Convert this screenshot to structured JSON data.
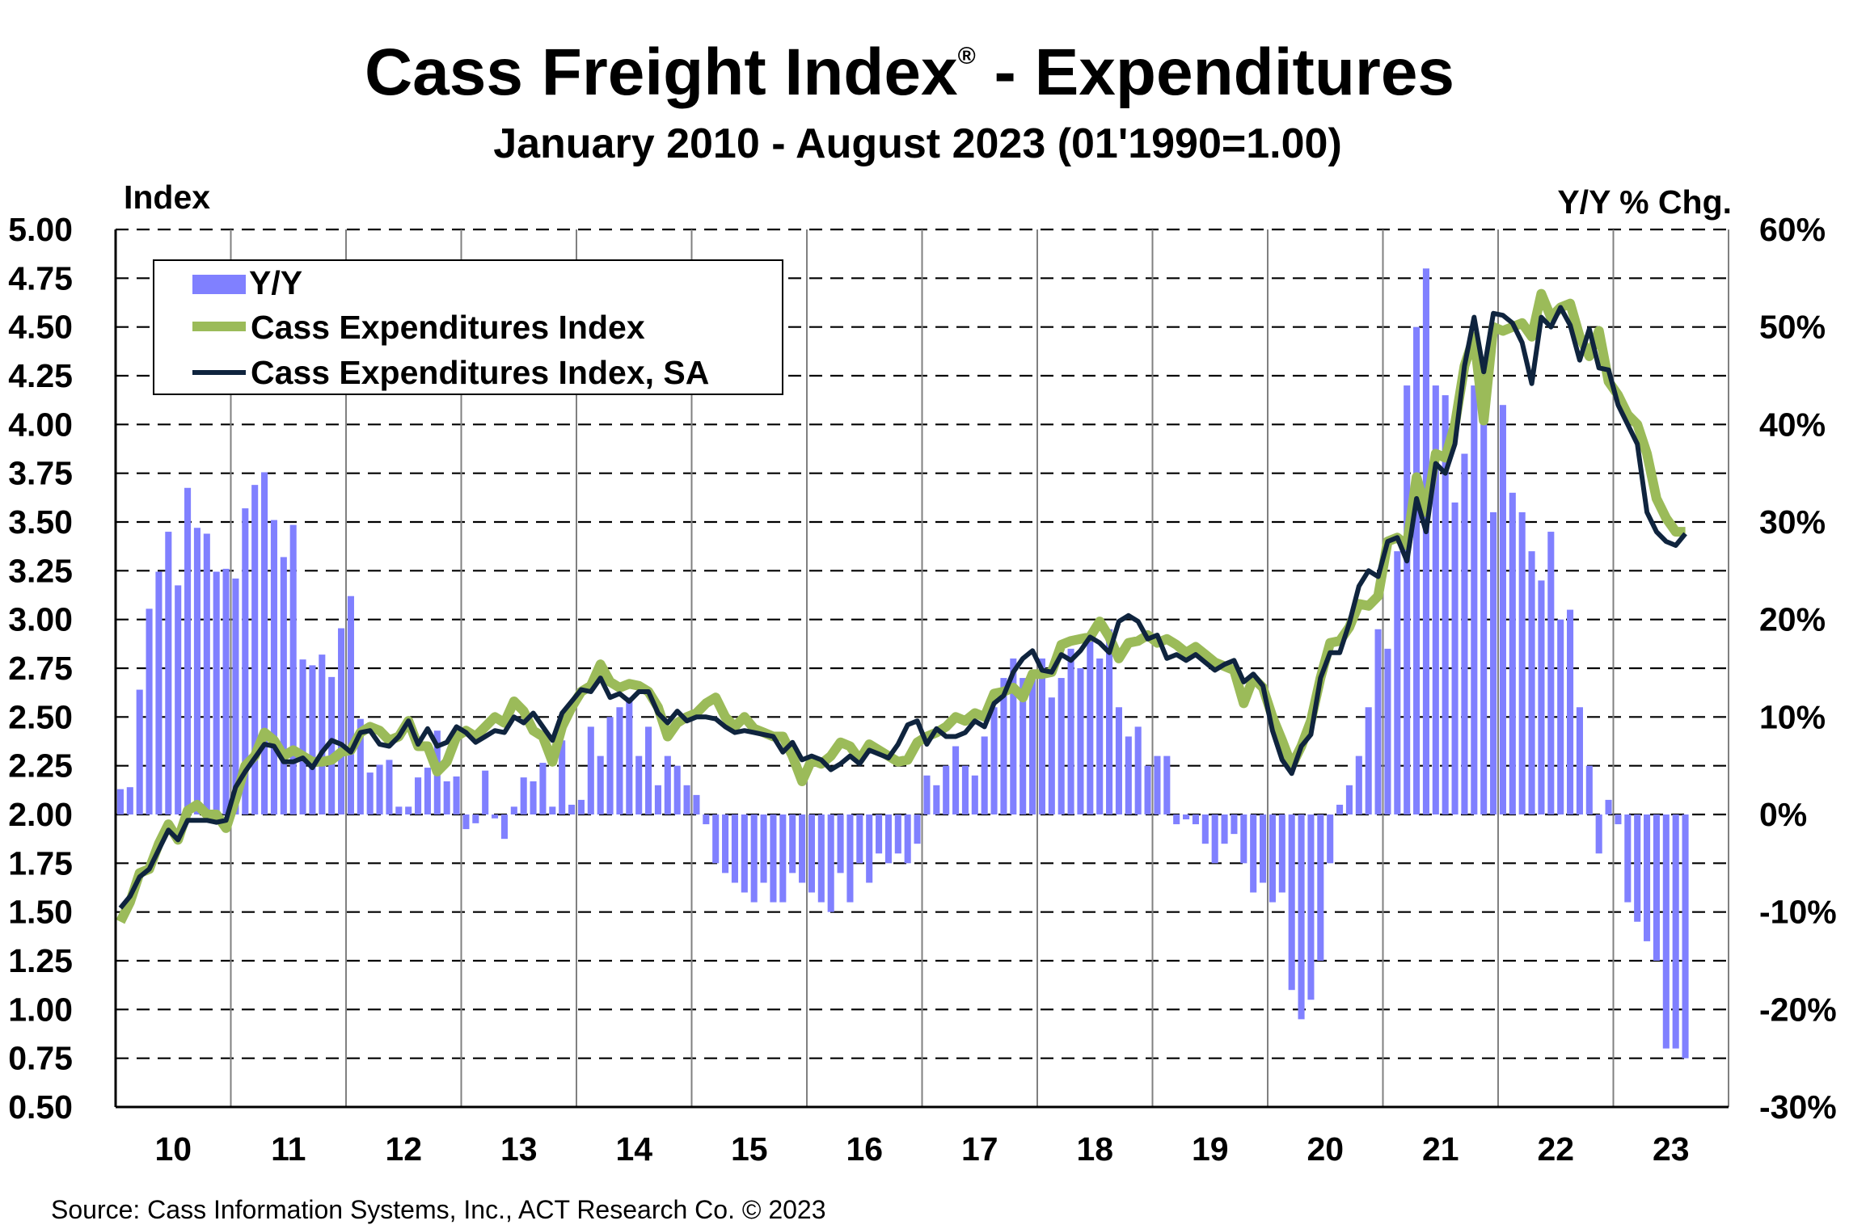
{
  "chart_data": {
    "type": "bar+line",
    "title": "Cass Freight Index",
    "title_mark": "®",
    "title_suffix": " - Expenditures",
    "subtitle": "January 2010 - August 2023 (01'1990=1.00)",
    "ylabel_left": "Index",
    "ylabel_right": "Y/Y % Chg.",
    "source": "Source: Cass Information Systems, Inc., ACT Research Co. © 2023",
    "ylim_left": [
      0.5,
      5.0
    ],
    "ylim_right": [
      -30,
      60
    ],
    "yticks_left": [
      "5.00",
      "4.75",
      "4.50",
      "4.25",
      "4.00",
      "3.75",
      "3.50",
      "3.25",
      "3.00",
      "2.75",
      "2.50",
      "2.25",
      "2.00",
      "1.75",
      "1.50",
      "1.25",
      "1.00",
      "0.75",
      "0.50"
    ],
    "yticks_right": [
      "60%",
      "50%",
      "40%",
      "30%",
      "20%",
      "10%",
      "0%",
      "-10%",
      "-20%",
      "-30%"
    ],
    "xticks": [
      "10",
      "11",
      "12",
      "13",
      "14",
      "15",
      "16",
      "17",
      "18",
      "19",
      "20",
      "21",
      "22",
      "23"
    ],
    "grid": true,
    "legend_placement": "top-left",
    "colors": {
      "yy": "#8080ff",
      "nsa": "#9bbb59",
      "sa": "#0f243e"
    },
    "legend": [
      "Y/Y",
      "Cass Expenditures Index",
      "Cass Expenditures Index, SA"
    ],
    "start": "2010-01",
    "end": "2023-08",
    "series": [
      {
        "name": "Y/Y",
        "axis": "right",
        "type": "bar",
        "values": [
          2.6,
          2.8,
          12.8,
          21.1,
          24.9,
          29.0,
          23.5,
          33.5,
          29.4,
          28.8,
          24.9,
          25.2,
          24.2,
          31.4,
          33.8,
          35.1,
          30.2,
          26.4,
          29.7,
          15.9,
          15.3,
          16.4,
          14.1,
          19.1,
          22.4,
          9.8,
          4.3,
          5.1,
          5.6,
          0.8,
          0.8,
          3.8,
          4.8,
          8.6,
          3.4,
          3.9,
          -1.5,
          -0.9,
          4.5,
          -0.4,
          -2.5,
          0.8,
          3.8,
          3.4,
          5.3,
          0.8,
          7.6,
          1.0,
          1.5,
          9,
          6,
          10,
          11,
          12,
          6,
          9,
          3,
          6,
          5,
          3,
          2,
          -1,
          -5,
          -6,
          -7,
          -8,
          -9,
          -7,
          -9,
          -9,
          -6,
          -7,
          -8,
          -9,
          -10,
          -6,
          -9,
          -5,
          -7,
          -4,
          -5,
          -4,
          -5,
          -3,
          4,
          3,
          5,
          7,
          5,
          4,
          8,
          11,
          14,
          16,
          14,
          14,
          16,
          12,
          14,
          17,
          15,
          18,
          16,
          19,
          11,
          8,
          9,
          5,
          6,
          6,
          -1,
          -0.5,
          -1,
          -3,
          -5,
          -3,
          -2,
          -5,
          -8,
          -7,
          -9,
          -8,
          -18,
          -21,
          -19,
          -15,
          -5,
          1,
          3,
          6,
          11,
          19,
          17,
          27,
          44,
          50,
          56,
          44,
          43,
          32,
          37,
          44,
          43,
          31,
          42,
          33,
          31,
          27,
          24,
          29,
          20,
          21,
          11,
          5,
          -4,
          1.5,
          -1,
          -9,
          -11,
          -13,
          -15,
          -24,
          -24,
          -25
        ]
      },
      {
        "name": "Cass Expenditures Index",
        "axis": "left",
        "type": "line",
        "values": [
          1.45,
          1.55,
          1.7,
          1.72,
          1.85,
          1.95,
          1.87,
          2.02,
          2.05,
          2.0,
          2.0,
          1.93,
          2.08,
          2.25,
          2.3,
          2.42,
          2.38,
          2.3,
          2.33,
          2.3,
          2.27,
          2.27,
          2.28,
          2.32,
          2.33,
          2.42,
          2.45,
          2.43,
          2.38,
          2.4,
          2.48,
          2.35,
          2.35,
          2.22,
          2.27,
          2.4,
          2.43,
          2.4,
          2.45,
          2.5,
          2.47,
          2.58,
          2.53,
          2.43,
          2.4,
          2.27,
          2.45,
          2.55,
          2.63,
          2.66,
          2.77,
          2.68,
          2.65,
          2.67,
          2.66,
          2.63,
          2.55,
          2.4,
          2.47,
          2.5,
          2.52,
          2.57,
          2.6,
          2.5,
          2.45,
          2.5,
          2.44,
          2.42,
          2.4,
          2.4,
          2.3,
          2.17,
          2.28,
          2.26,
          2.3,
          2.37,
          2.35,
          2.28,
          2.36,
          2.33,
          2.3,
          2.27,
          2.28,
          2.37,
          2.4,
          2.42,
          2.45,
          2.5,
          2.48,
          2.52,
          2.5,
          2.62,
          2.63,
          2.65,
          2.6,
          2.72,
          2.72,
          2.73,
          2.87,
          2.89,
          2.9,
          2.91,
          2.99,
          2.91,
          2.8,
          2.88,
          2.89,
          2.92,
          2.88,
          2.9,
          2.87,
          2.83,
          2.86,
          2.82,
          2.78,
          2.76,
          2.74,
          2.57,
          2.7,
          2.65,
          2.5,
          2.38,
          2.25,
          2.35,
          2.48,
          2.7,
          2.88,
          2.89,
          2.96,
          3.08,
          3.07,
          3.12,
          3.4,
          3.42,
          3.38,
          3.73,
          3.55,
          3.85,
          3.83,
          4.0,
          4.3,
          4.45,
          4.02,
          4.5,
          4.48,
          4.5,
          4.52,
          4.45,
          4.67,
          4.55,
          4.6,
          4.62,
          4.45,
          4.35,
          4.48,
          4.22,
          4.15,
          4.05,
          4.0,
          3.85,
          3.62,
          3.52,
          3.45,
          3.45
        ]
      },
      {
        "name": "Cass Expenditures Index, SA",
        "axis": "left",
        "type": "line",
        "values": [
          1.52,
          1.58,
          1.68,
          1.72,
          1.82,
          1.92,
          1.87,
          1.97,
          1.97,
          1.97,
          1.96,
          1.97,
          2.14,
          2.22,
          2.29,
          2.36,
          2.35,
          2.27,
          2.27,
          2.29,
          2.24,
          2.32,
          2.38,
          2.36,
          2.32,
          2.42,
          2.43,
          2.36,
          2.35,
          2.4,
          2.48,
          2.36,
          2.44,
          2.35,
          2.37,
          2.45,
          2.42,
          2.37,
          2.4,
          2.43,
          2.42,
          2.5,
          2.47,
          2.52,
          2.45,
          2.38,
          2.52,
          2.58,
          2.64,
          2.63,
          2.7,
          2.6,
          2.62,
          2.58,
          2.63,
          2.63,
          2.52,
          2.47,
          2.53,
          2.48,
          2.5,
          2.5,
          2.49,
          2.45,
          2.42,
          2.43,
          2.42,
          2.41,
          2.4,
          2.32,
          2.37,
          2.28,
          2.3,
          2.28,
          2.23,
          2.26,
          2.3,
          2.26,
          2.33,
          2.31,
          2.29,
          2.36,
          2.46,
          2.48,
          2.36,
          2.44,
          2.4,
          2.4,
          2.42,
          2.48,
          2.45,
          2.57,
          2.61,
          2.73,
          2.8,
          2.84,
          2.74,
          2.73,
          2.82,
          2.79,
          2.84,
          2.91,
          2.88,
          2.83,
          2.99,
          3.02,
          2.99,
          2.9,
          2.92,
          2.8,
          2.82,
          2.79,
          2.82,
          2.78,
          2.74,
          2.77,
          2.79,
          2.68,
          2.72,
          2.66,
          2.43,
          2.28,
          2.21,
          2.35,
          2.41,
          2.7,
          2.83,
          2.83,
          2.98,
          3.17,
          3.25,
          3.22,
          3.4,
          3.42,
          3.3,
          3.62,
          3.45,
          3.8,
          3.75,
          3.9,
          4.3,
          4.55,
          4.27,
          4.57,
          4.56,
          4.52,
          4.42,
          4.21,
          4.55,
          4.5,
          4.6,
          4.51,
          4.33,
          4.49,
          4.29,
          4.28,
          4.1,
          4.0,
          3.9,
          3.55,
          3.45,
          3.4,
          3.38,
          3.44
        ]
      }
    ]
  }
}
